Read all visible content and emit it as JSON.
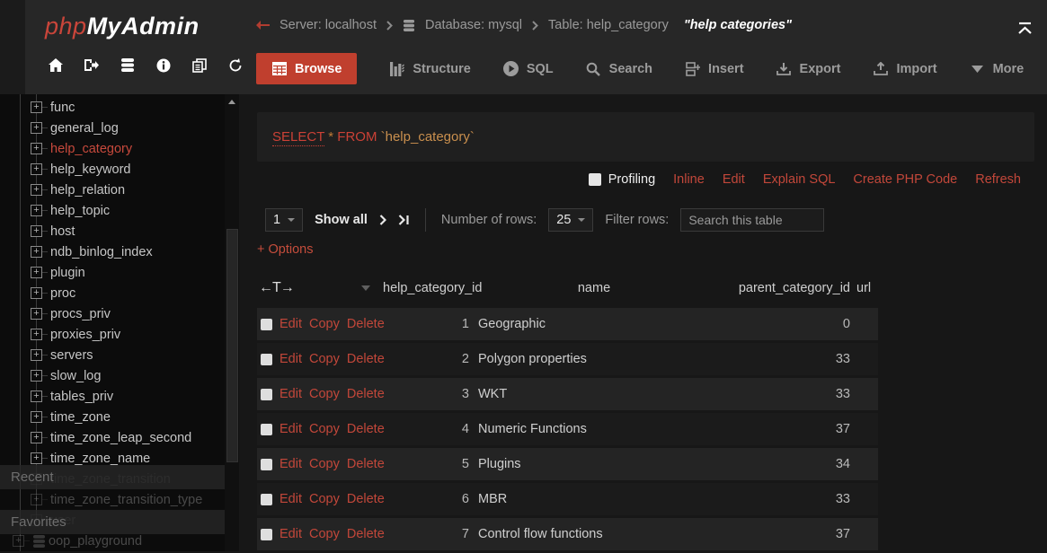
{
  "colors": {
    "accent_red": "#c03f2e",
    "link_red": "#c2473a",
    "header_bg": "#272727",
    "sidebar_bg": "#0c0c0c",
    "content_bg": "#171717",
    "sql_keyword": "#cb4136",
    "sql_identifier": "#c98f4e",
    "row_odd": "#242424",
    "row_even": "#1b1b1b"
  },
  "header": {
    "logo_php": "php",
    "logo_rest": "MyAdmin",
    "nav_icons": [
      "home-icon",
      "logout-icon",
      "database-icon",
      "info-icon",
      "docs-icon",
      "refresh-icon"
    ],
    "breadcrumb": {
      "server": "Server: localhost",
      "database": "Database: mysql",
      "table": "Table: help_category",
      "comment": "\"help categories\""
    },
    "tabs": [
      {
        "label": "Browse",
        "active": true
      },
      {
        "label": "Structure"
      },
      {
        "label": "SQL"
      },
      {
        "label": "Search"
      },
      {
        "label": "Insert"
      },
      {
        "label": "Export"
      },
      {
        "label": "Import"
      },
      {
        "label": "More"
      }
    ]
  },
  "sidebar": {
    "recent_label": "Recent",
    "favorites_label": "Favorites",
    "items": [
      {
        "label": "func"
      },
      {
        "label": "general_log"
      },
      {
        "label": "help_category",
        "active": true
      },
      {
        "label": "help_keyword"
      },
      {
        "label": "help_relation"
      },
      {
        "label": "help_topic"
      },
      {
        "label": "host"
      },
      {
        "label": "ndb_binlog_index"
      },
      {
        "label": "plugin"
      },
      {
        "label": "proc"
      },
      {
        "label": "procs_priv"
      },
      {
        "label": "proxies_priv"
      },
      {
        "label": "servers"
      },
      {
        "label": "slow_log"
      },
      {
        "label": "tables_priv"
      },
      {
        "label": "time_zone"
      },
      {
        "label": "time_zone_leap_second"
      },
      {
        "label": "time_zone_name"
      },
      {
        "label": "time_zone_transition",
        "dimmed": true
      },
      {
        "label": "time_zone_transition_type",
        "dimmed": true
      },
      {
        "label": "user",
        "dimmed": true
      },
      {
        "label": "oop_playground",
        "dimmed": true,
        "type": "database"
      }
    ]
  },
  "main": {
    "sql_query": {
      "keyword_select": "SELECT",
      "star": "*",
      "keyword_from": "FROM",
      "identifier": "`help_category`"
    },
    "profiling_label": "Profiling",
    "action_links": [
      "Inline",
      "Edit",
      "Explain SQL",
      "Create PHP Code",
      "Refresh"
    ],
    "pagination": {
      "page_value": "1",
      "show_all": "Show all",
      "number_of_rows_label": "Number of rows:",
      "number_of_rows_value": "25",
      "filter_label": "Filter rows:",
      "filter_placeholder": "Search this table"
    },
    "options_toggle": "+ Options",
    "table": {
      "select_header": "←T→",
      "columns": [
        "help_category_id",
        "name",
        "parent_category_id",
        "url"
      ],
      "row_actions": [
        "Edit",
        "Copy",
        "Delete"
      ],
      "rows": [
        {
          "help_category_id": "1",
          "name": "Geographic",
          "parent_category_id": "0",
          "url": ""
        },
        {
          "help_category_id": "2",
          "name": "Polygon properties",
          "parent_category_id": "33",
          "url": ""
        },
        {
          "help_category_id": "3",
          "name": "WKT",
          "parent_category_id": "33",
          "url": ""
        },
        {
          "help_category_id": "4",
          "name": "Numeric Functions",
          "parent_category_id": "37",
          "url": ""
        },
        {
          "help_category_id": "5",
          "name": "Plugins",
          "parent_category_id": "34",
          "url": ""
        },
        {
          "help_category_id": "6",
          "name": "MBR",
          "parent_category_id": "33",
          "url": ""
        },
        {
          "help_category_id": "7",
          "name": "Control flow functions",
          "parent_category_id": "37",
          "url": ""
        }
      ]
    }
  }
}
